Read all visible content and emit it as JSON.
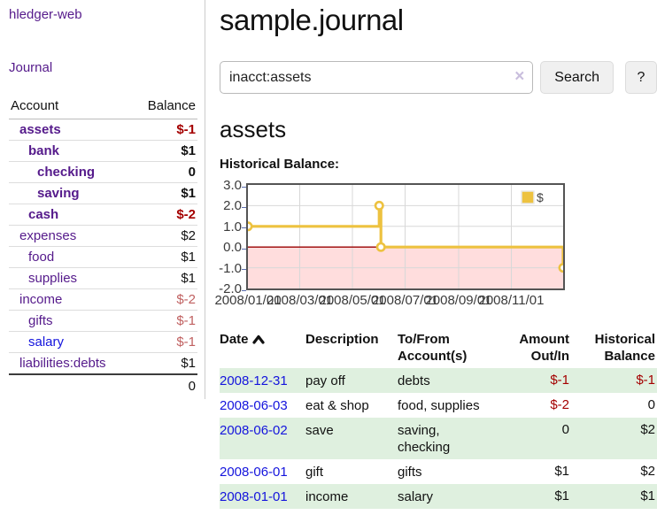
{
  "app": {
    "brand": "hledger-web"
  },
  "sidebar": {
    "nav_journal": "Journal",
    "accounts": {
      "header_account": "Account",
      "header_balance": "Balance",
      "rows": [
        {
          "name": "assets",
          "depth": 1,
          "bold": true,
          "balance": "$-1",
          "neg": "strong"
        },
        {
          "name": "bank",
          "depth": 2,
          "bold": true,
          "balance": "$1"
        },
        {
          "name": "checking",
          "depth": 3,
          "bold": true,
          "balance": "0"
        },
        {
          "name": "saving",
          "depth": 3,
          "bold": true,
          "balance": "$1"
        },
        {
          "name": "cash",
          "depth": 2,
          "bold": true,
          "balance": "$-2",
          "neg": "strong"
        },
        {
          "name": "expenses",
          "depth": 1,
          "bold": false,
          "balance": "$2"
        },
        {
          "name": "food",
          "depth": 2,
          "bold": false,
          "balance": "$1"
        },
        {
          "name": "supplies",
          "depth": 2,
          "bold": false,
          "balance": "$1"
        },
        {
          "name": "income",
          "depth": 1,
          "bold": false,
          "balance": "$-2",
          "neg": "soft"
        },
        {
          "name": "gifts",
          "depth": 2,
          "bold": false,
          "balance": "$-1",
          "neg": "soft"
        },
        {
          "name": "salary",
          "depth": 2,
          "bold": false,
          "balance": "$-1",
          "neg": "soft",
          "link": "blue"
        },
        {
          "name": "liabilities:debts",
          "depth": 1,
          "bold": false,
          "balance": "$1"
        }
      ],
      "total": "0"
    }
  },
  "main": {
    "title": "sample.journal",
    "search": {
      "value": "inacct:assets",
      "clear_icon": "×",
      "button_label": "Search",
      "help_label": "?"
    },
    "section_heading": "assets",
    "chart_label": "Historical Balance:",
    "register": {
      "headers": {
        "date": "Date",
        "sort_icon": "caret-up",
        "description": "Description",
        "tofrom": "To/From Account(s)",
        "amount": "Amount Out/In",
        "balance": "Historical Balance"
      },
      "rows": [
        {
          "date": "2008-12-31",
          "description": "pay off",
          "accounts": "debts",
          "amount": "$-1",
          "amount_neg": true,
          "balance": "$-1",
          "balance_neg": true
        },
        {
          "date": "2008-06-03",
          "description": "eat & shop",
          "accounts": "food, supplies",
          "amount": "$-2",
          "amount_neg": true,
          "balance": "0",
          "balance_neg": false
        },
        {
          "date": "2008-06-02",
          "description": "save",
          "accounts": "saving, checking",
          "amount": "0",
          "amount_neg": false,
          "balance": "$2",
          "balance_neg": false
        },
        {
          "date": "2008-06-01",
          "description": "gift",
          "accounts": "gifts",
          "amount": "$1",
          "amount_neg": false,
          "balance": "$2",
          "balance_neg": false
        },
        {
          "date": "2008-01-01",
          "description": "income",
          "accounts": "salary",
          "amount": "$1",
          "amount_neg": false,
          "balance": "$1",
          "balance_neg": false
        }
      ]
    }
  },
  "chart_data": {
    "type": "line",
    "title": "Historical Balance:",
    "step": true,
    "series": [
      {
        "name": "$",
        "color": "#EDC240",
        "points": [
          [
            "2008-01-01",
            1.0
          ],
          [
            "2008-06-01",
            2.0
          ],
          [
            "2008-06-03",
            0.0
          ],
          [
            "2008-12-31",
            -1.0
          ]
        ]
      }
    ],
    "xlim": [
      "2008-01-01",
      "2008-12-31"
    ],
    "ylim": [
      -2.0,
      3.0
    ],
    "ytick_labels": [
      "3.0",
      "2.0",
      "1.0",
      "0.0",
      "-1.0",
      "-2.0"
    ],
    "ytick_values": [
      3.0,
      2.0,
      1.0,
      0.0,
      -1.0,
      -2.0
    ],
    "xtick_labels": [
      "2008/01/01",
      "2008/03/01",
      "2008/05/01",
      "2008/07/01",
      "2008/09/01",
      "2008/11/01"
    ],
    "xtick_dates": [
      "2008-01-01",
      "2008-03-01",
      "2008-05-01",
      "2008-07-01",
      "2008-09-01",
      "2008-11-01"
    ],
    "grid": true,
    "legend_position": "top-right",
    "negative_region_color": "#ffdddd",
    "zero_line_color": "#990000",
    "grid_color": "#d8d8d8"
  },
  "colors": {
    "link_purple": "#551A8B",
    "link_blue": "#1414dd",
    "negative_strong": "#a40000",
    "negative_soft": "#c06060",
    "row_stripe_green": "#dff0df",
    "series_gold": "#EDC240"
  }
}
